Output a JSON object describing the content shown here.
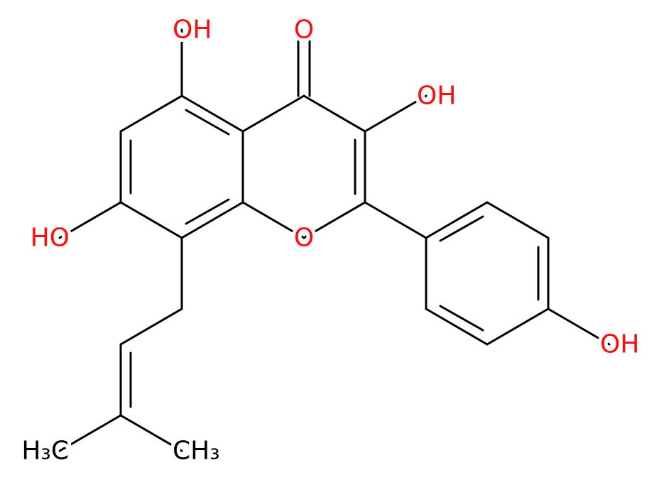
{
  "atoms": {
    "carbonyl_o": "O",
    "oh_5": "OH",
    "oh_3": "OH",
    "oh_7": "HO",
    "ring_o": "O",
    "oh_4p": "OH",
    "methyl_left": "H₃C",
    "methyl_right": "CH₃"
  }
}
